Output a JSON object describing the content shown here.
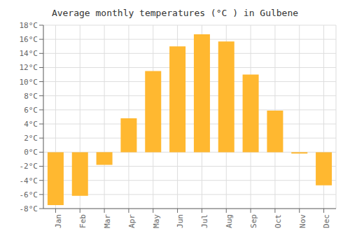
{
  "chart_data": {
    "type": "bar",
    "title": "Average monthly temperatures (°C ) in Gulbene",
    "categories": [
      "Jan",
      "Feb",
      "Mar",
      "Apr",
      "May",
      "Jun",
      "Jul",
      "Aug",
      "Sep",
      "Oct",
      "Nov",
      "Dec"
    ],
    "values": [
      -7.5,
      -6.2,
      -1.8,
      4.8,
      11.5,
      15.0,
      16.7,
      15.7,
      11.0,
      5.9,
      -0.2,
      -4.7
    ],
    "color": "#FFB830",
    "ylim": [
      -8,
      18
    ],
    "yticks": [
      {
        "value": -8,
        "label": "-8°C"
      },
      {
        "value": -6,
        "label": "-6°C"
      },
      {
        "value": -4,
        "label": "-4°C"
      },
      {
        "value": -2,
        "label": "-2°C"
      },
      {
        "value": 0,
        "label": "0°C"
      },
      {
        "value": 2,
        "label": "2°C"
      },
      {
        "value": 4,
        "label": "4°C"
      },
      {
        "value": 6,
        "label": "6°C"
      },
      {
        "value": 8,
        "label": "8°C"
      },
      {
        "value": 10,
        "label": "10°C"
      },
      {
        "value": 12,
        "label": "12°C"
      },
      {
        "value": 14,
        "label": "14°C"
      },
      {
        "value": 16,
        "label": "16°C"
      },
      {
        "value": 18,
        "label": "18°C"
      }
    ],
    "grid": true
  }
}
